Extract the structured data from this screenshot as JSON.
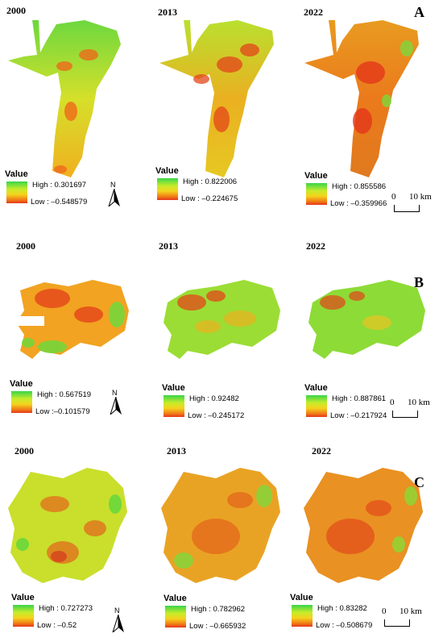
{
  "colors": {
    "high": "#39d54a",
    "mid": "#f5d31d",
    "low": "#e3371a"
  },
  "value_label": "Value",
  "compass_letter": "N",
  "scale": {
    "zero": "0",
    "ten": "10 km"
  },
  "panels": [
    {
      "label": "A",
      "years": [
        "2000",
        "2013",
        "2022"
      ],
      "maps": [
        {
          "high": "High : 0.301697",
          "low": "Low : –0.548579"
        },
        {
          "high": "High : 0.822006",
          "low": "Low : –0.224675"
        },
        {
          "high": "High : 0.855586",
          "low": "Low : –0.359966"
        }
      ]
    },
    {
      "label": "B",
      "years": [
        "2000",
        "2013",
        "2022"
      ],
      "maps": [
        {
          "high": "High : 0.567519",
          "low": "Low :–0.101579"
        },
        {
          "high": "High : 0.92482",
          "low": "Low : –0.245172"
        },
        {
          "high": "High : 0.887861",
          "low": "Low : –0.217924"
        }
      ]
    },
    {
      "label": "C",
      "years": [
        "2000",
        "2013",
        "2022"
      ],
      "maps": [
        {
          "high": "High : 0.727273",
          "low": "Low : –0.52"
        },
        {
          "high": "High : 0.782962",
          "low": "Low : –0.665932"
        },
        {
          "high": "High : 0.83282",
          "low": "Low : –0.508679"
        }
      ]
    }
  ]
}
